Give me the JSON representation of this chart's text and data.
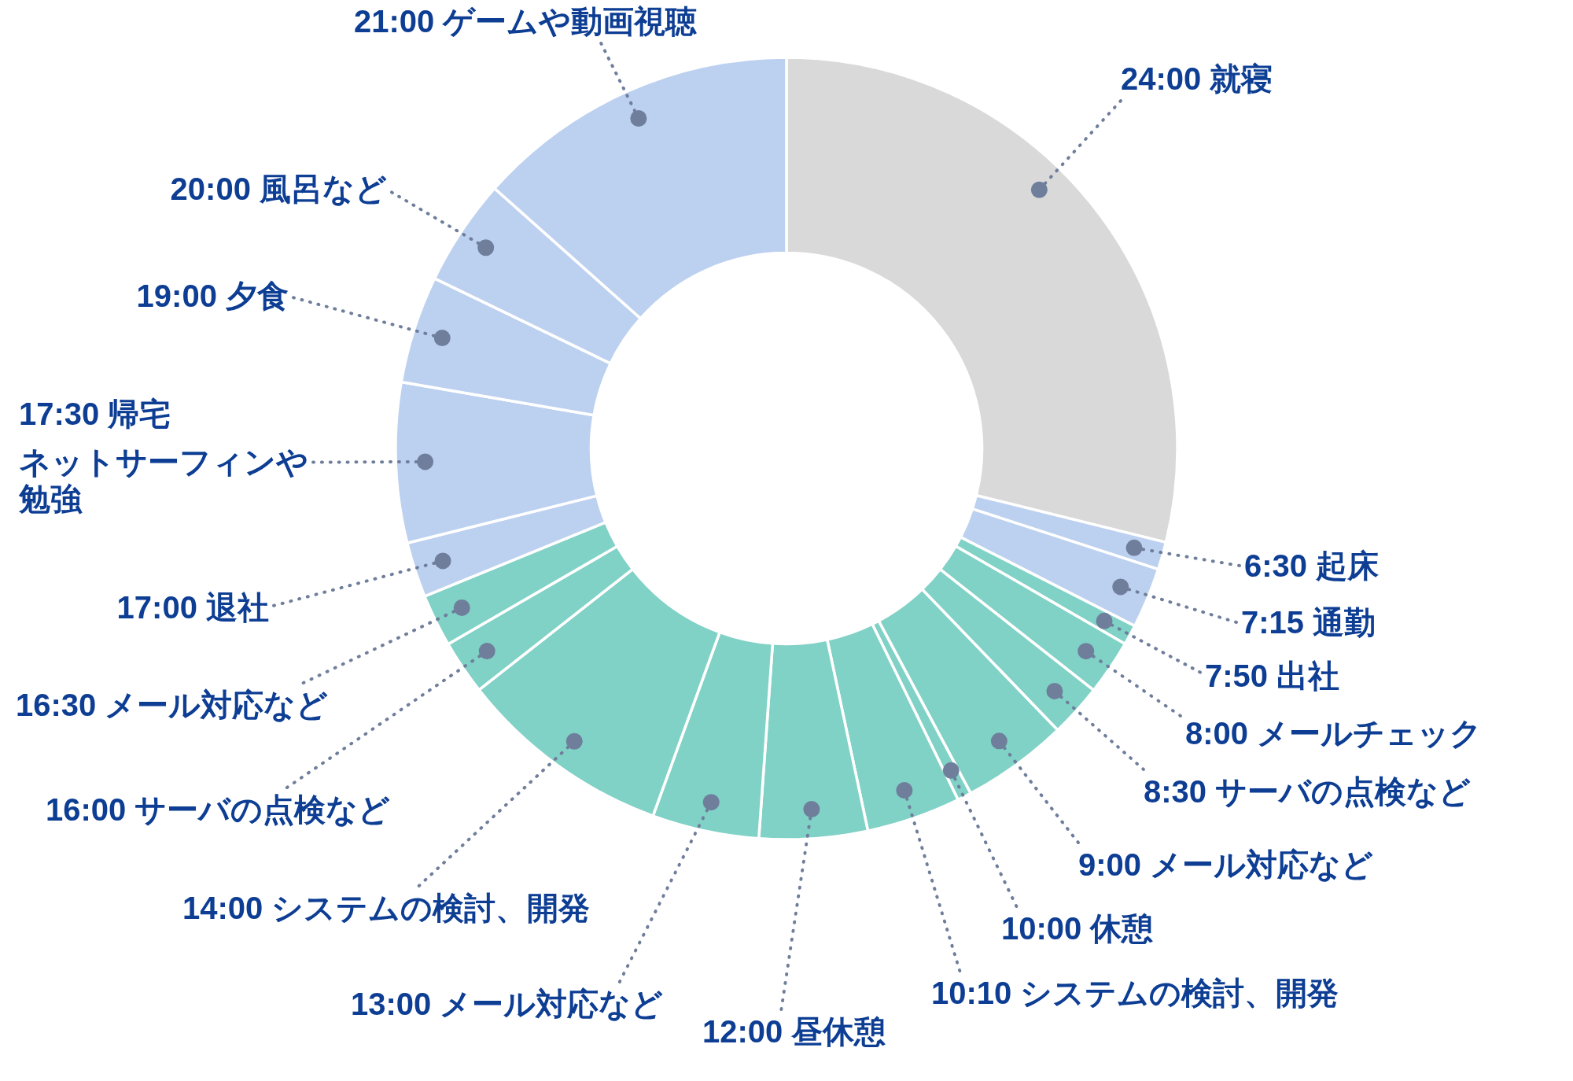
{
  "chart_data": {
    "type": "donut",
    "categories": [
      "24:00 就寝",
      "6:30 起床",
      "7:15 通勤",
      "7:50 出社",
      "8:00 メールチェック",
      "8:30 サーバの点検など",
      "9:00 メール対応など",
      "10:00 休憩",
      "10:10 システムの検討、開発",
      "12:00 昼休憩",
      "13:00 メール対応など",
      "14:00 システムの検討、開発",
      "16:00 サーバの点検など",
      "16:30 メール対応など",
      "17:00 退社",
      "17:30 帰宅ネットサーフィンや勉強",
      "19:00 夕食",
      "20:00 風呂など",
      "21:00 ゲームや動画視聴"
    ],
    "values": [
      28.86,
      1.14,
      2.5,
      0.83,
      2.28,
      2.19,
      4.39,
      0.58,
      3.89,
      4.47,
      4.42,
      8.86,
      2.25,
      2.17,
      2.28,
      6.61,
      4.44,
      4.42,
      13.42
    ],
    "colors": [
      "#d9d9d9",
      "#bcd0f0",
      "#bcd0f0",
      "#80d1c6",
      "#80d1c6",
      "#80d1c6",
      "#80d1c6",
      "#80d1c6",
      "#80d1c6",
      "#80d1c6",
      "#80d1c6",
      "#80d1c6",
      "#80d1c6",
      "#80d1c6",
      "#bcd0f0",
      "#bcd0f0",
      "#bcd0f0",
      "#bcd0f0",
      "#bcd0f0"
    ]
  }
}
